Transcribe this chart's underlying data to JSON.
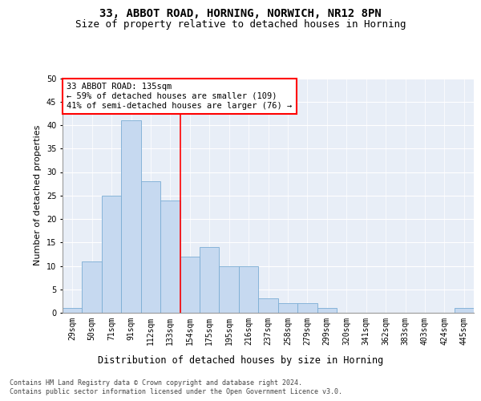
{
  "title1": "33, ABBOT ROAD, HORNING, NORWICH, NR12 8PN",
  "title2": "Size of property relative to detached houses in Horning",
  "xlabel": "Distribution of detached houses by size in Horning",
  "ylabel": "Number of detached properties",
  "categories": [
    "29sqm",
    "50sqm",
    "71sqm",
    "91sqm",
    "112sqm",
    "133sqm",
    "154sqm",
    "175sqm",
    "195sqm",
    "216sqm",
    "237sqm",
    "258sqm",
    "279sqm",
    "299sqm",
    "320sqm",
    "341sqm",
    "362sqm",
    "383sqm",
    "403sqm",
    "424sqm",
    "445sqm"
  ],
  "values": [
    1,
    11,
    25,
    41,
    28,
    24,
    12,
    14,
    10,
    10,
    3,
    2,
    2,
    1,
    0,
    0,
    0,
    0,
    0,
    0,
    1
  ],
  "bar_color": "#c6d9f0",
  "bar_edge_color": "#7badd4",
  "vline_x": 5.5,
  "vline_color": "red",
  "annotation_text": "33 ABBOT ROAD: 135sqm\n← 59% of detached houses are smaller (109)\n41% of semi-detached houses are larger (76) →",
  "annotation_box_color": "white",
  "annotation_box_edge_color": "red",
  "ylim": [
    0,
    50
  ],
  "yticks": [
    0,
    5,
    10,
    15,
    20,
    25,
    30,
    35,
    40,
    45,
    50
  ],
  "background_color": "#e8eef7",
  "grid_color": "white",
  "footer1": "Contains HM Land Registry data © Crown copyright and database right 2024.",
  "footer2": "Contains public sector information licensed under the Open Government Licence v3.0.",
  "title1_fontsize": 10,
  "title2_fontsize": 9,
  "tick_fontsize": 7,
  "ylabel_fontsize": 8,
  "xlabel_fontsize": 8.5,
  "annotation_fontsize": 7.5,
  "footer_fontsize": 6
}
